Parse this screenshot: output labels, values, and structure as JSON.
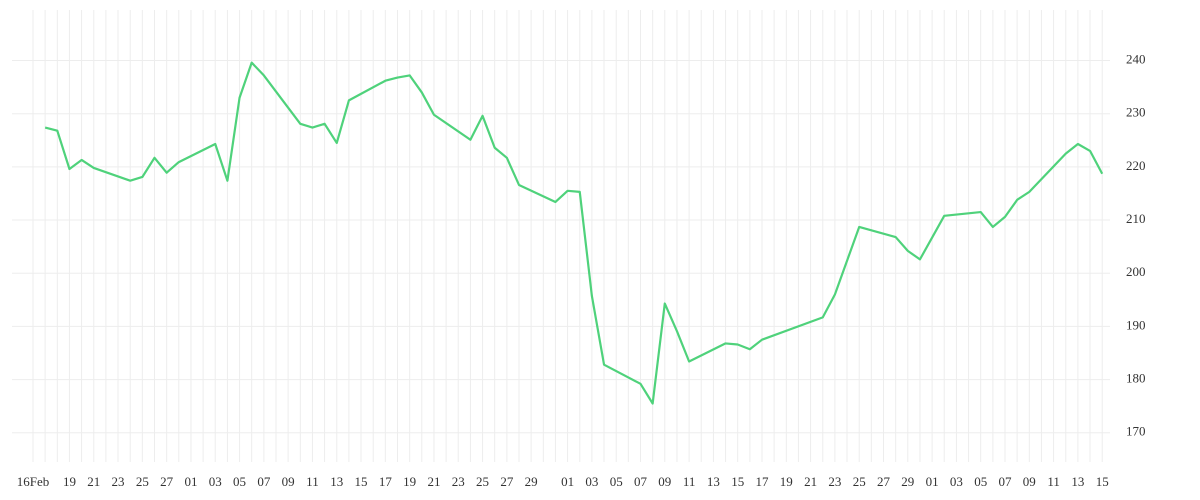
{
  "chart_data": {
    "type": "line",
    "categories": [
      "16Feb",
      null,
      null,
      "19",
      null,
      "21",
      null,
      "23",
      null,
      "25",
      null,
      "27",
      null,
      "01",
      null,
      "03",
      null,
      "05",
      null,
      "07",
      null,
      "09",
      null,
      "11",
      null,
      "13",
      null,
      "15",
      null,
      "17",
      null,
      "19",
      null,
      "21",
      null,
      "23",
      null,
      "25",
      null,
      "27",
      null,
      "29",
      null,
      null,
      "01",
      null,
      "03",
      null,
      "05",
      null,
      "07",
      null,
      "09",
      null,
      "11",
      null,
      "13",
      null,
      "15",
      null,
      "17",
      null,
      "19",
      null,
      "21",
      null,
      "23",
      null,
      "25",
      null,
      "27",
      null,
      "29",
      null,
      "01",
      null,
      "03",
      null,
      "05",
      null,
      "07",
      null,
      "09",
      null,
      "11",
      null,
      "13",
      null,
      "15"
    ],
    "series": [
      {
        "color": "#4fd27b",
        "values": [
          null,
          227.4,
          226.8,
          219.6,
          221.3,
          219.8,
          null,
          null,
          217.4,
          218.1,
          221.7,
          218.9,
          220.9,
          null,
          null,
          224.3,
          217.4,
          233.0,
          239.6,
          237.2,
          null,
          null,
          228.1,
          227.4,
          228.1,
          224.5,
          232.5,
          null,
          null,
          236.2,
          236.8,
          237.2,
          234.0,
          229.8,
          null,
          null,
          225.1,
          229.6,
          223.6,
          221.7,
          216.6,
          null,
          null,
          213.4,
          215.5,
          215.3,
          195.7,
          182.8,
          null,
          null,
          179.2,
          175.5,
          194.3,
          189.1,
          183.4,
          null,
          null,
          186.8,
          186.6,
          185.7,
          187.5,
          null,
          null,
          null,
          null,
          191.7,
          196.0,
          null,
          208.7,
          null,
          null,
          206.8,
          204.2,
          202.6,
          null,
          210.8,
          null,
          null,
          211.5,
          208.7,
          210.6,
          213.8,
          215.3,
          null,
          null,
          222.5,
          224.3,
          223.0,
          218.7
        ]
      }
    ],
    "ylim": [
      164.5,
      249.5
    ],
    "yticks": [
      170,
      180,
      190,
      200,
      210,
      220,
      230,
      240
    ],
    "grid": true,
    "y_axis_side": "right"
  }
}
